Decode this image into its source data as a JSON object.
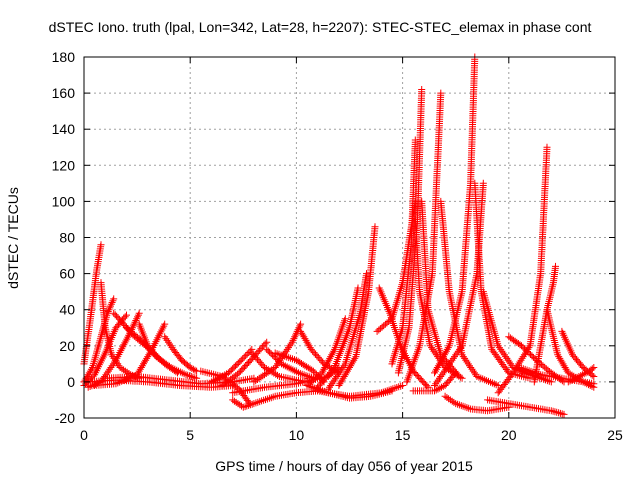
{
  "chart_data": {
    "type": "scatter",
    "title": "dSTEC Iono. truth (lpal, Lon=342, Lat=28, h=2207): STEC-STEC_elemax in phase cont",
    "xlabel": "GPS time / hours of day 056 of year 2015",
    "ylabel": "dSTEC  / TECUs",
    "xlim": [
      0,
      25
    ],
    "ylim": [
      -20,
      180
    ],
    "xticks": [
      0,
      5,
      10,
      15,
      20,
      25
    ],
    "yticks": [
      -20,
      0,
      20,
      40,
      60,
      80,
      100,
      120,
      140,
      160,
      180
    ],
    "grid": true,
    "marker": "+",
    "color": "#ff0000",
    "arcs": [
      {
        "x": [
          0.0,
          0.3,
          0.6,
          0.8
        ],
        "y": [
          10,
          35,
          62,
          76
        ]
      },
      {
        "x": [
          0.8,
          1.0,
          1.3,
          1.7,
          2.2,
          2.6
        ],
        "y": [
          55,
          30,
          15,
          8,
          4,
          2
        ]
      },
      {
        "x": [
          0.0,
          0.4,
          0.8,
          1.1,
          1.4
        ],
        "y": [
          0,
          8,
          25,
          38,
          46
        ]
      },
      {
        "x": [
          1.4,
          1.8,
          2.3,
          2.9,
          3.4
        ],
        "y": [
          38,
          33,
          26,
          20,
          14
        ]
      },
      {
        "x": [
          0.0,
          0.5,
          1.0,
          1.5,
          2.0
        ],
        "y": [
          -2,
          4,
          16,
          30,
          37
        ]
      },
      {
        "x": [
          2.0,
          2.6,
          3.2,
          3.8,
          4.4
        ],
        "y": [
          30,
          24,
          17,
          10,
          5
        ]
      },
      {
        "x": [
          0.2,
          0.8,
          1.5,
          2.2,
          2.6
        ],
        "y": [
          -3,
          0,
          12,
          28,
          38
        ]
      },
      {
        "x": [
          2.6,
          3.0,
          3.5,
          4.1,
          4.8,
          5.3
        ],
        "y": [
          32,
          20,
          13,
          8,
          4,
          2
        ]
      },
      {
        "x": [
          0.5,
          1.5,
          2.5,
          3.2,
          3.8
        ],
        "y": [
          -2,
          -1,
          4,
          18,
          32
        ]
      },
      {
        "x": [
          3.8,
          4.2,
          4.6,
          5.0,
          5.3
        ],
        "y": [
          25,
          18,
          12,
          8,
          6
        ]
      },
      {
        "x": [
          0.0,
          1.5,
          3.0,
          4.5,
          6.0,
          7.0
        ],
        "y": [
          0,
          1,
          0,
          -2,
          -3,
          -2
        ]
      },
      {
        "x": [
          1.0,
          2.5,
          4.0,
          5.5,
          7.0,
          8.0
        ],
        "y": [
          2,
          3,
          1,
          -1,
          0,
          2
        ]
      },
      {
        "x": [
          5.5,
          6.5,
          7.3,
          7.8
        ],
        "y": [
          6,
          3,
          -4,
          -12
        ]
      },
      {
        "x": [
          6.0,
          6.8,
          7.4,
          7.9
        ],
        "y": [
          0,
          5,
          12,
          18
        ]
      },
      {
        "x": [
          7.9,
          8.5,
          9.2,
          10.0,
          10.5
        ],
        "y": [
          16,
          8,
          3,
          1,
          0
        ]
      },
      {
        "x": [
          6.5,
          7.3,
          8.0,
          8.6
        ],
        "y": [
          -2,
          5,
          14,
          22
        ]
      },
      {
        "x": [
          8.6,
          9.3,
          10.1,
          10.8
        ],
        "y": [
          18,
          10,
          5,
          2
        ]
      },
      {
        "x": [
          7.0,
          7.5,
          8.0,
          9.0,
          10.0,
          11.0
        ],
        "y": [
          -10,
          -14,
          -12,
          -8,
          -6,
          -5
        ]
      },
      {
        "x": [
          7.0,
          8.5,
          10.0,
          11.5,
          12.0
        ],
        "y": [
          -6,
          -3,
          -1,
          3,
          8
        ]
      },
      {
        "x": [
          8.0,
          9.0,
          9.8,
          10.2
        ],
        "y": [
          0,
          8,
          22,
          32
        ]
      },
      {
        "x": [
          10.2,
          10.7,
          11.3,
          12.0
        ],
        "y": [
          28,
          18,
          10,
          5
        ]
      },
      {
        "x": [
          9.0,
          10.0,
          10.8,
          11.3
        ],
        "y": [
          16,
          12,
          6,
          0
        ]
      },
      {
        "x": [
          10.5,
          11.2,
          11.8,
          12.3
        ],
        "y": [
          -2,
          5,
          18,
          35
        ]
      },
      {
        "x": [
          11.0,
          11.8,
          12.5,
          12.9
        ],
        "y": [
          -3,
          8,
          30,
          52
        ]
      },
      {
        "x": [
          11.5,
          12.3,
          13.0,
          13.3
        ],
        "y": [
          -4,
          10,
          38,
          60
        ]
      },
      {
        "x": [
          12.0,
          12.8,
          13.4,
          13.7
        ],
        "y": [
          -2,
          14,
          50,
          86
        ]
      },
      {
        "x": [
          10.5,
          11.5,
          12.5,
          13.5,
          14.5
        ],
        "y": [
          -2,
          -6,
          -9,
          -8,
          -5
        ]
      },
      {
        "x": [
          11.0,
          12.5,
          14.0,
          15.0
        ],
        "y": [
          -5,
          -8,
          -6,
          -2
        ]
      },
      {
        "x": [
          13.9,
          14.4,
          14.9,
          15.5,
          16.2
        ],
        "y": [
          52,
          38,
          20,
          6,
          -3
        ]
      },
      {
        "x": [
          13.8,
          14.5,
          15.0,
          15.6
        ],
        "y": [
          28,
          35,
          55,
          100
        ]
      },
      {
        "x": [
          14.5,
          15.0,
          15.4,
          15.6
        ],
        "y": [
          10,
          30,
          75,
          134
        ]
      },
      {
        "x": [
          15.6,
          15.8,
          16.3,
          17.0,
          17.8
        ],
        "y": [
          90,
          50,
          20,
          8,
          2
        ]
      },
      {
        "x": [
          14.8,
          15.3,
          15.7,
          15.9
        ],
        "y": [
          5,
          30,
          90,
          162
        ]
      },
      {
        "x": [
          15.9,
          16.2,
          16.8,
          17.6
        ],
        "y": [
          100,
          40,
          15,
          4
        ]
      },
      {
        "x": [
          15.5,
          16.5,
          17.0,
          17.5
        ],
        "y": [
          -5,
          -5,
          -2,
          5
        ]
      },
      {
        "x": [
          15.2,
          15.8,
          16.4,
          16.8
        ],
        "y": [
          0,
          20,
          60,
          160
        ]
      },
      {
        "x": [
          16.8,
          17.2,
          17.8,
          18.5,
          19.5
        ],
        "y": [
          100,
          50,
          15,
          3,
          -2
        ]
      },
      {
        "x": [
          16.5,
          17.2,
          17.8,
          18.2,
          18.4
        ],
        "y": [
          5,
          20,
          50,
          110,
          180
        ]
      },
      {
        "x": [
          18.4,
          18.7,
          19.2,
          20.0,
          21.0
        ],
        "y": [
          110,
          50,
          18,
          5,
          2
        ]
      },
      {
        "x": [
          17.0,
          17.5,
          18.2,
          19.0,
          20.0
        ],
        "y": [
          -8,
          -12,
          -15,
          -16,
          -14
        ]
      },
      {
        "x": [
          16.5,
          17.8,
          18.5,
          18.8
        ],
        "y": [
          -2,
          20,
          60,
          110
        ]
      },
      {
        "x": [
          18.8,
          19.5,
          20.2,
          21.0,
          22.0
        ],
        "y": [
          50,
          20,
          8,
          4,
          0
        ]
      },
      {
        "x": [
          19.5,
          20.2,
          21.0,
          21.5,
          21.8
        ],
        "y": [
          -6,
          5,
          20,
          60,
          130
        ]
      },
      {
        "x": [
          21.2,
          21.5,
          21.8,
          22.1,
          22.2
        ],
        "y": [
          0,
          20,
          40,
          55,
          64
        ]
      },
      {
        "x": [
          21.8,
          22.3,
          22.8,
          23.5,
          24.0
        ],
        "y": [
          40,
          15,
          5,
          0,
          -3
        ]
      },
      {
        "x": [
          20.0,
          20.6,
          21.3,
          22.0,
          22.6
        ],
        "y": [
          25,
          20,
          12,
          5,
          0
        ]
      },
      {
        "x": [
          19.0,
          20.0,
          21.0,
          22.0,
          22.6
        ],
        "y": [
          -10,
          -12,
          -14,
          -16,
          -18
        ]
      },
      {
        "x": [
          20.5,
          21.5,
          22.5,
          23.5,
          24.0
        ],
        "y": [
          8,
          4,
          2,
          0,
          -1
        ]
      },
      {
        "x": [
          22.5,
          23.0,
          23.5,
          24.0
        ],
        "y": [
          28,
          15,
          8,
          3
        ]
      },
      {
        "x": [
          22.8,
          23.3,
          23.8,
          24.0
        ],
        "y": [
          0,
          3,
          6,
          8
        ]
      }
    ]
  }
}
